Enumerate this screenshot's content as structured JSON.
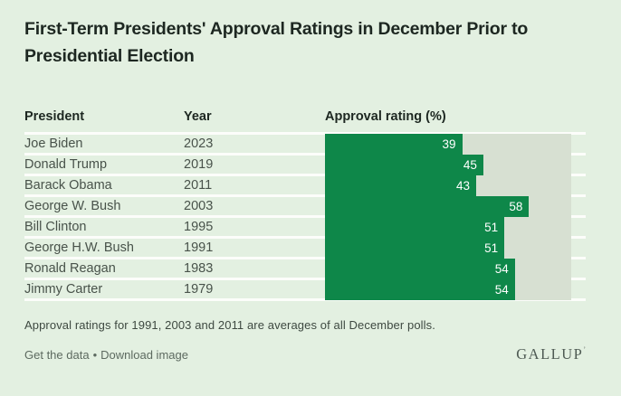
{
  "title": {
    "line1": "First-Term Presidents' Approval Ratings in December Prior to",
    "line2": "Presidential Election"
  },
  "table": {
    "columns": {
      "president": "President",
      "year": "Year",
      "approval": "Approval rating (%)"
    },
    "rows": [
      {
        "president": "Joe Biden",
        "year": "2023",
        "value": 39
      },
      {
        "president": "Donald Trump",
        "year": "2019",
        "value": 45
      },
      {
        "president": "Barack Obama",
        "year": "2011",
        "value": 43
      },
      {
        "president": "George W. Bush",
        "year": "2003",
        "value": 58
      },
      {
        "president": "Bill Clinton",
        "year": "1995",
        "value": 51
      },
      {
        "president": "George H.W. Bush",
        "year": "1991",
        "value": 51
      },
      {
        "president": "Ronald Reagan",
        "year": "1983",
        "value": 54
      },
      {
        "president": "Jimmy Carter",
        "year": "1979",
        "value": 54
      }
    ]
  },
  "footnote": "Approval ratings for 1991, 2003 and 2011 are averages of all December polls.",
  "footer": {
    "get_data_label": "Get the data",
    "separator": "•",
    "download_label": "Download image",
    "brand": "GALLUP",
    "brand_mark": "’"
  },
  "colors": {
    "background": "#e3f0e1",
    "bar": "#0e8749",
    "track": "#d7e0d2",
    "separator_line": "#fcfdfa"
  },
  "chart_data": {
    "type": "bar",
    "orientation": "horizontal",
    "title": "First-Term Presidents' Approval Ratings in December Prior to Presidential Election",
    "categories": [
      "Joe Biden",
      "Donald Trump",
      "Barack Obama",
      "George W. Bush",
      "Bill Clinton",
      "George H.W. Bush",
      "Ronald Reagan",
      "Jimmy Carter"
    ],
    "years": [
      "2023",
      "2019",
      "2011",
      "2003",
      "1995",
      "1991",
      "1983",
      "1979"
    ],
    "values": [
      39,
      45,
      43,
      58,
      51,
      51,
      54,
      54
    ],
    "xlabel": "Approval rating (%)",
    "ylabel": "President",
    "xlim": [
      0,
      70
    ],
    "grid": false,
    "legend": false,
    "value_labels": "inside-end",
    "note": "Approval ratings for 1991, 2003 and 2011 are averages of all December polls.",
    "source": "GALLUP"
  }
}
